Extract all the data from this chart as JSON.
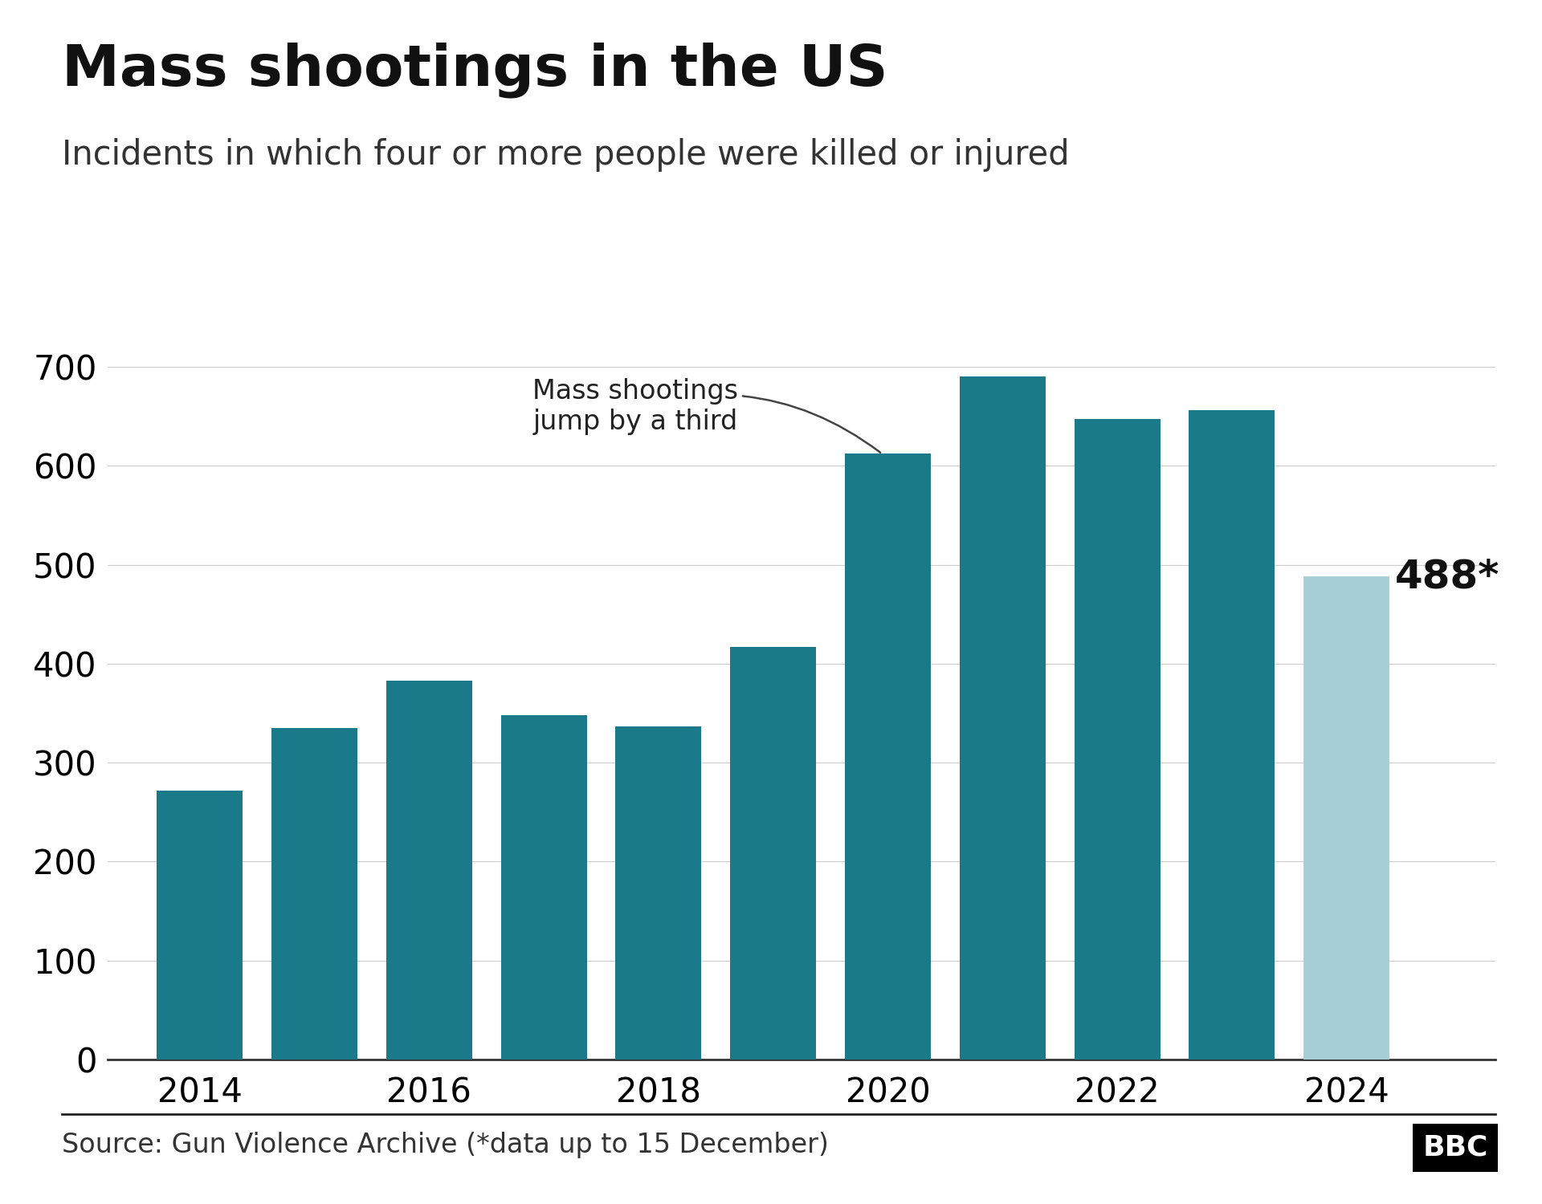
{
  "years": [
    2014,
    2015,
    2016,
    2017,
    2018,
    2019,
    2020,
    2021,
    2022,
    2023,
    2024
  ],
  "values": [
    272,
    335,
    383,
    348,
    337,
    417,
    612,
    690,
    647,
    656,
    488
  ],
  "bar_colors": [
    "#1a7a8a",
    "#1a7a8a",
    "#1a7a8a",
    "#1a7a8a",
    "#1a7a8a",
    "#1a7a8a",
    "#1a7a8a",
    "#1a7a8a",
    "#1a7a8a",
    "#1a7a8a",
    "#a8cfd8"
  ],
  "title": "Mass shootings in the US",
  "subtitle": "Incidents in which four or more people were killed or injured",
  "ylim": [
    0,
    730
  ],
  "yticks": [
    0,
    100,
    200,
    300,
    400,
    500,
    600,
    700
  ],
  "xticks": [
    2014,
    2016,
    2018,
    2020,
    2022,
    2024
  ],
  "annotation_text": "Mass shootings\njump by a third",
  "label_2024": "488*",
  "source_text": "Source: Gun Violence Archive (*data up to 15 December)",
  "background_color": "#ffffff",
  "bar_dark_color": "#1a7a8a",
  "bar_light_color": "#a8cfd8",
  "title_fontsize": 52,
  "subtitle_fontsize": 30,
  "tick_fontsize": 30,
  "annotation_fontsize": 24,
  "label_2024_fontsize": 36,
  "source_fontsize": 24
}
